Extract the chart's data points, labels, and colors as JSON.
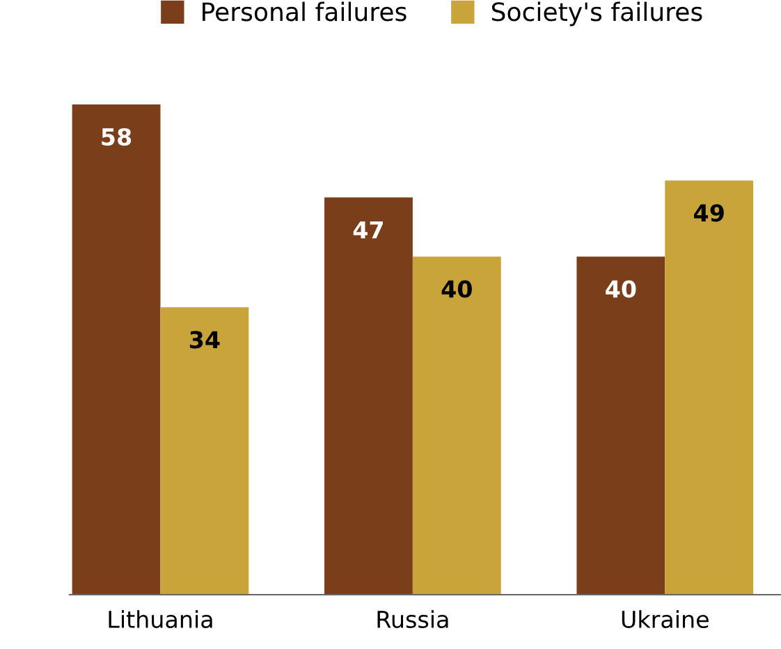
{
  "chart_data": {
    "type": "bar",
    "categories": [
      "Lithuania",
      "Russia",
      "Ukraine"
    ],
    "series": [
      {
        "name": "Personal failures",
        "color": "#7a3e1a",
        "values": [
          58,
          47,
          40
        ]
      },
      {
        "name": "Society's failures",
        "color": "#c9a43a",
        "values": [
          34,
          40,
          49
        ]
      }
    ],
    "data_labels": true,
    "legend": "top",
    "grid": false
  }
}
